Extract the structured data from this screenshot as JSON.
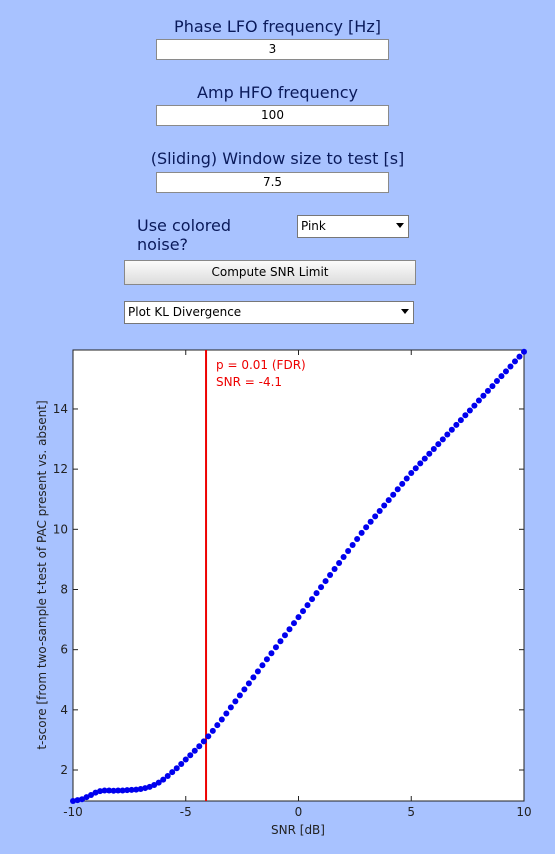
{
  "form": {
    "fields": [
      {
        "label": "Phase LFO frequency [Hz]",
        "value": "3"
      },
      {
        "label": "Amp HFO frequency",
        "value": "100"
      },
      {
        "label": "(Sliding) Window size to test [s]",
        "value": "7.5"
      }
    ],
    "noise": {
      "label": "Use colored noise?",
      "value": "Pink"
    },
    "button": "Compute SNR Limit",
    "plot_select": "Plot KL Divergence"
  },
  "chart_data": {
    "type": "dotline",
    "xlabel": "SNR [dB]",
    "ylabel": "t-score [from two-sample t-test of PAC present vs. absent]",
    "xlim": [
      -10,
      10
    ],
    "ylim": [
      0.97,
      15.96
    ],
    "xticks": [
      -10,
      -5,
      0,
      5,
      10
    ],
    "yticks": [
      2,
      4,
      6,
      8,
      10,
      12,
      14
    ],
    "grid": false,
    "series": [
      {
        "color": "#0000ee",
        "x": [
          -10,
          -9.8,
          -9.6,
          -9.4,
          -9.2,
          -9,
          -8.8,
          -8.6,
          -8.4,
          -8.2,
          -8,
          -7.8,
          -7.6,
          -7.4,
          -7.2,
          -7,
          -6.8,
          -6.6,
          -6.4,
          -6.2,
          -6,
          -5.8,
          -5.6,
          -5.4,
          -5.2,
          -5,
          -4.8,
          -4.6,
          -4.4,
          -4.2,
          -4,
          -3.8,
          -3.6,
          -3.4,
          -3.2,
          -3,
          -2.8,
          -2.6,
          -2.4,
          -2.2,
          -2,
          -1.8,
          -1.6,
          -1.4,
          -1.2,
          -1,
          -0.8,
          -0.6,
          -0.4,
          -0.2,
          0,
          0.2,
          0.4,
          0.6,
          0.8,
          1,
          1.2,
          1.4,
          1.6,
          1.8,
          2,
          2.2,
          2.4,
          2.6,
          2.8,
          3,
          3.2,
          3.4,
          3.6,
          3.8,
          4,
          4.2,
          4.4,
          4.6,
          4.8,
          5,
          5.2,
          5.4,
          5.6,
          5.8,
          6,
          6.2,
          6.4,
          6.6,
          6.8,
          7,
          7.2,
          7.4,
          7.6,
          7.8,
          8,
          8.2,
          8.4,
          8.6,
          8.8,
          9,
          9.2,
          9.4,
          9.6,
          9.8,
          10
        ],
        "values": [
          0.97,
          1.0,
          1.03,
          1.1,
          1.17,
          1.25,
          1.3,
          1.32,
          1.32,
          1.31,
          1.32,
          1.32,
          1.33,
          1.34,
          1.35,
          1.37,
          1.4,
          1.44,
          1.5,
          1.58,
          1.68,
          1.8,
          1.93,
          2.06,
          2.2,
          2.35,
          2.49,
          2.64,
          2.79,
          2.95,
          3.12,
          3.3,
          3.49,
          3.68,
          3.88,
          4.08,
          4.28,
          4.48,
          4.68,
          4.88,
          5.08,
          5.28,
          5.48,
          5.68,
          5.88,
          6.08,
          6.28,
          6.48,
          6.68,
          6.88,
          7.08,
          7.28,
          7.48,
          7.68,
          7.88,
          8.08,
          8.28,
          8.48,
          8.68,
          8.88,
          9.08,
          9.28,
          9.48,
          9.68,
          9.88,
          10.07,
          10.25,
          10.43,
          10.61,
          10.79,
          10.97,
          11.15,
          11.33,
          11.51,
          11.69,
          11.87,
          12.03,
          12.19,
          12.35,
          12.51,
          12.67,
          12.83,
          12.99,
          13.15,
          13.31,
          13.47,
          13.63,
          13.79,
          13.95,
          14.11,
          14.28,
          14.44,
          14.6,
          14.76,
          14.93,
          15.09,
          15.25,
          15.41,
          15.58,
          15.74,
          15.9
        ]
      }
    ],
    "threshold": {
      "x": -4.1,
      "color": "#ee0000"
    },
    "annotations": [
      "p = 0.01 (FDR)",
      "SNR = -4.1"
    ]
  }
}
